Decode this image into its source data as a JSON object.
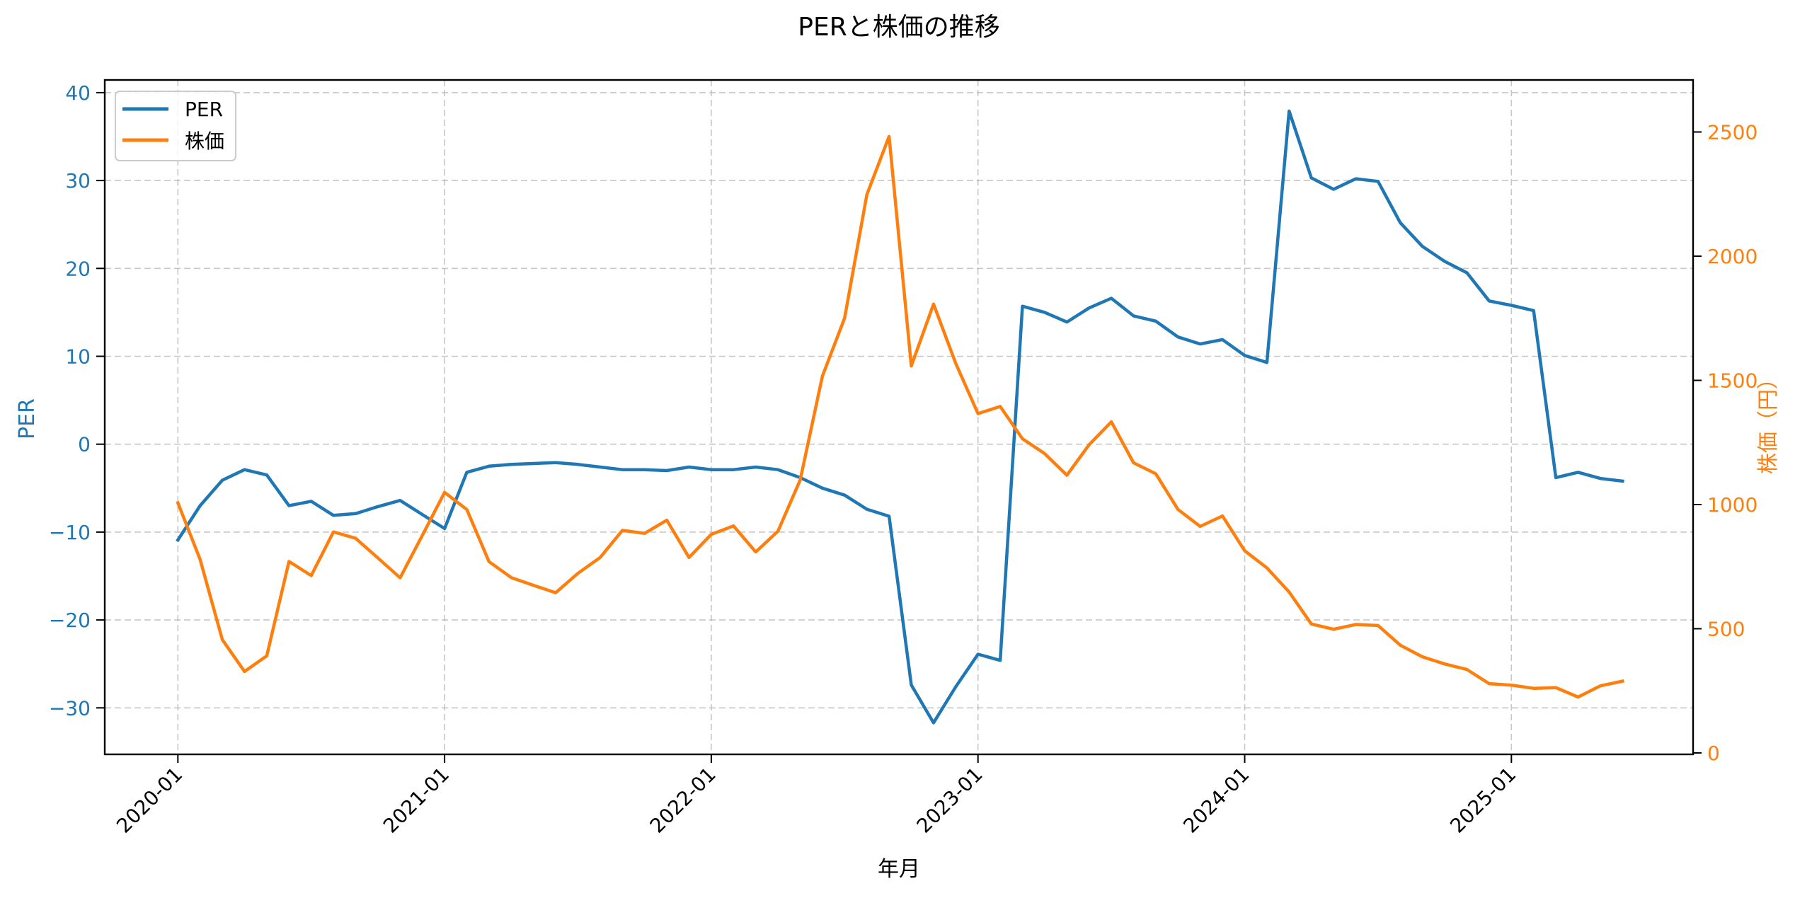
{
  "chart_data": {
    "type": "line",
    "title": "PERと株価の推移",
    "xlabel": "年月",
    "ylabel_left": "PER",
    "ylabel_right": "株価（円）",
    "x_ticks": [
      "2020-01",
      "2021-01",
      "2022-01",
      "2023-01",
      "2024-01",
      "2025-01"
    ],
    "y_left_ticks": [
      -30,
      -20,
      -10,
      0,
      10,
      20,
      30,
      40
    ],
    "y_right_ticks": [
      0,
      500,
      1000,
      1500,
      2000,
      2500
    ],
    "y_left_range": [
      -35.3,
      41.5
    ],
    "y_right_range": [
      0,
      2700
    ],
    "grid": true,
    "legend_position": "upper left",
    "x": [
      "2020-01",
      "2020-02",
      "2020-03",
      "2020-04",
      "2020-05",
      "2020-06",
      "2020-07",
      "2020-08",
      "2020-09",
      "2020-10",
      "2020-11",
      "2020-12",
      "2021-01",
      "2021-02",
      "2021-03",
      "2021-04",
      "2021-05",
      "2021-06",
      "2021-07",
      "2021-08",
      "2021-09",
      "2021-10",
      "2021-11",
      "2021-12",
      "2022-01",
      "2022-02",
      "2022-03",
      "2022-04",
      "2022-05",
      "2022-06",
      "2022-07",
      "2022-08",
      "2022-09",
      "2022-10",
      "2022-11",
      "2022-12",
      "2023-01",
      "2023-02",
      "2023-03",
      "2023-04",
      "2023-05",
      "2023-06",
      "2023-07",
      "2023-08",
      "2023-09",
      "2023-10",
      "2023-11",
      "2023-12",
      "2024-01",
      "2024-02",
      "2024-03",
      "2024-04",
      "2024-05",
      "2024-06",
      "2024-07",
      "2024-08",
      "2024-09",
      "2024-10",
      "2024-11",
      "2024-12",
      "2025-01",
      "2025-02",
      "2025-03",
      "2025-04",
      "2025-05",
      "2025-06"
    ],
    "series": [
      {
        "name": "PER",
        "axis": "left",
        "color": "#1f77b4",
        "values": [
          -10.9,
          -7.0,
          -4.1,
          -2.9,
          -3.5,
          -7.0,
          -6.5,
          -8.1,
          -7.9,
          -7.1,
          -6.4,
          -8.0,
          -9.6,
          -3.2,
          -2.5,
          -2.3,
          -2.2,
          -2.1,
          -2.3,
          -2.6,
          -2.9,
          -2.9,
          -3.0,
          -2.6,
          -2.9,
          -2.9,
          -2.6,
          -2.9,
          -3.8,
          -5.0,
          -5.8,
          -7.4,
          -8.2,
          -27.4,
          -31.7,
          -27.6,
          -23.9,
          -24.6,
          15.7,
          15.0,
          13.9,
          15.5,
          16.6,
          14.6,
          14.0,
          12.2,
          11.4,
          11.9,
          10.1,
          9.3,
          37.9,
          30.3,
          29.0,
          30.2,
          29.9,
          25.2,
          22.5,
          20.8,
          19.5,
          16.3,
          15.8,
          15.2,
          -3.8,
          -3.2,
          -3.9,
          -4.2
        ]
      },
      {
        "name": "株価",
        "axis": "right",
        "color": "#ff7f0e",
        "values": [
          1007,
          779,
          456,
          328,
          391,
          771,
          714,
          890,
          864,
          785,
          705,
          876,
          1049,
          980,
          770,
          706,
          675,
          645,
          723,
          787,
          896,
          884,
          937,
          787,
          880,
          914,
          809,
          893,
          1099,
          1517,
          1751,
          2248,
          2482,
          1558,
          1807,
          1568,
          1366,
          1395,
          1265,
          1205,
          1118,
          1241,
          1333,
          1168,
          1124,
          980,
          912,
          954,
          814,
          745,
          648,
          519,
          498,
          517,
          513,
          434,
          387,
          358,
          336,
          279,
          273,
          260,
          263,
          225,
          270,
          289
        ]
      }
    ]
  },
  "legend": {
    "items": [
      {
        "label": "PER",
        "color": "#1f77b4"
      },
      {
        "label": "株価",
        "color": "#ff7f0e"
      }
    ]
  },
  "colors": {
    "per": "#1f77b4",
    "price": "#ff7f0e",
    "grid": "#b0b0b0",
    "axis": "#000000"
  }
}
